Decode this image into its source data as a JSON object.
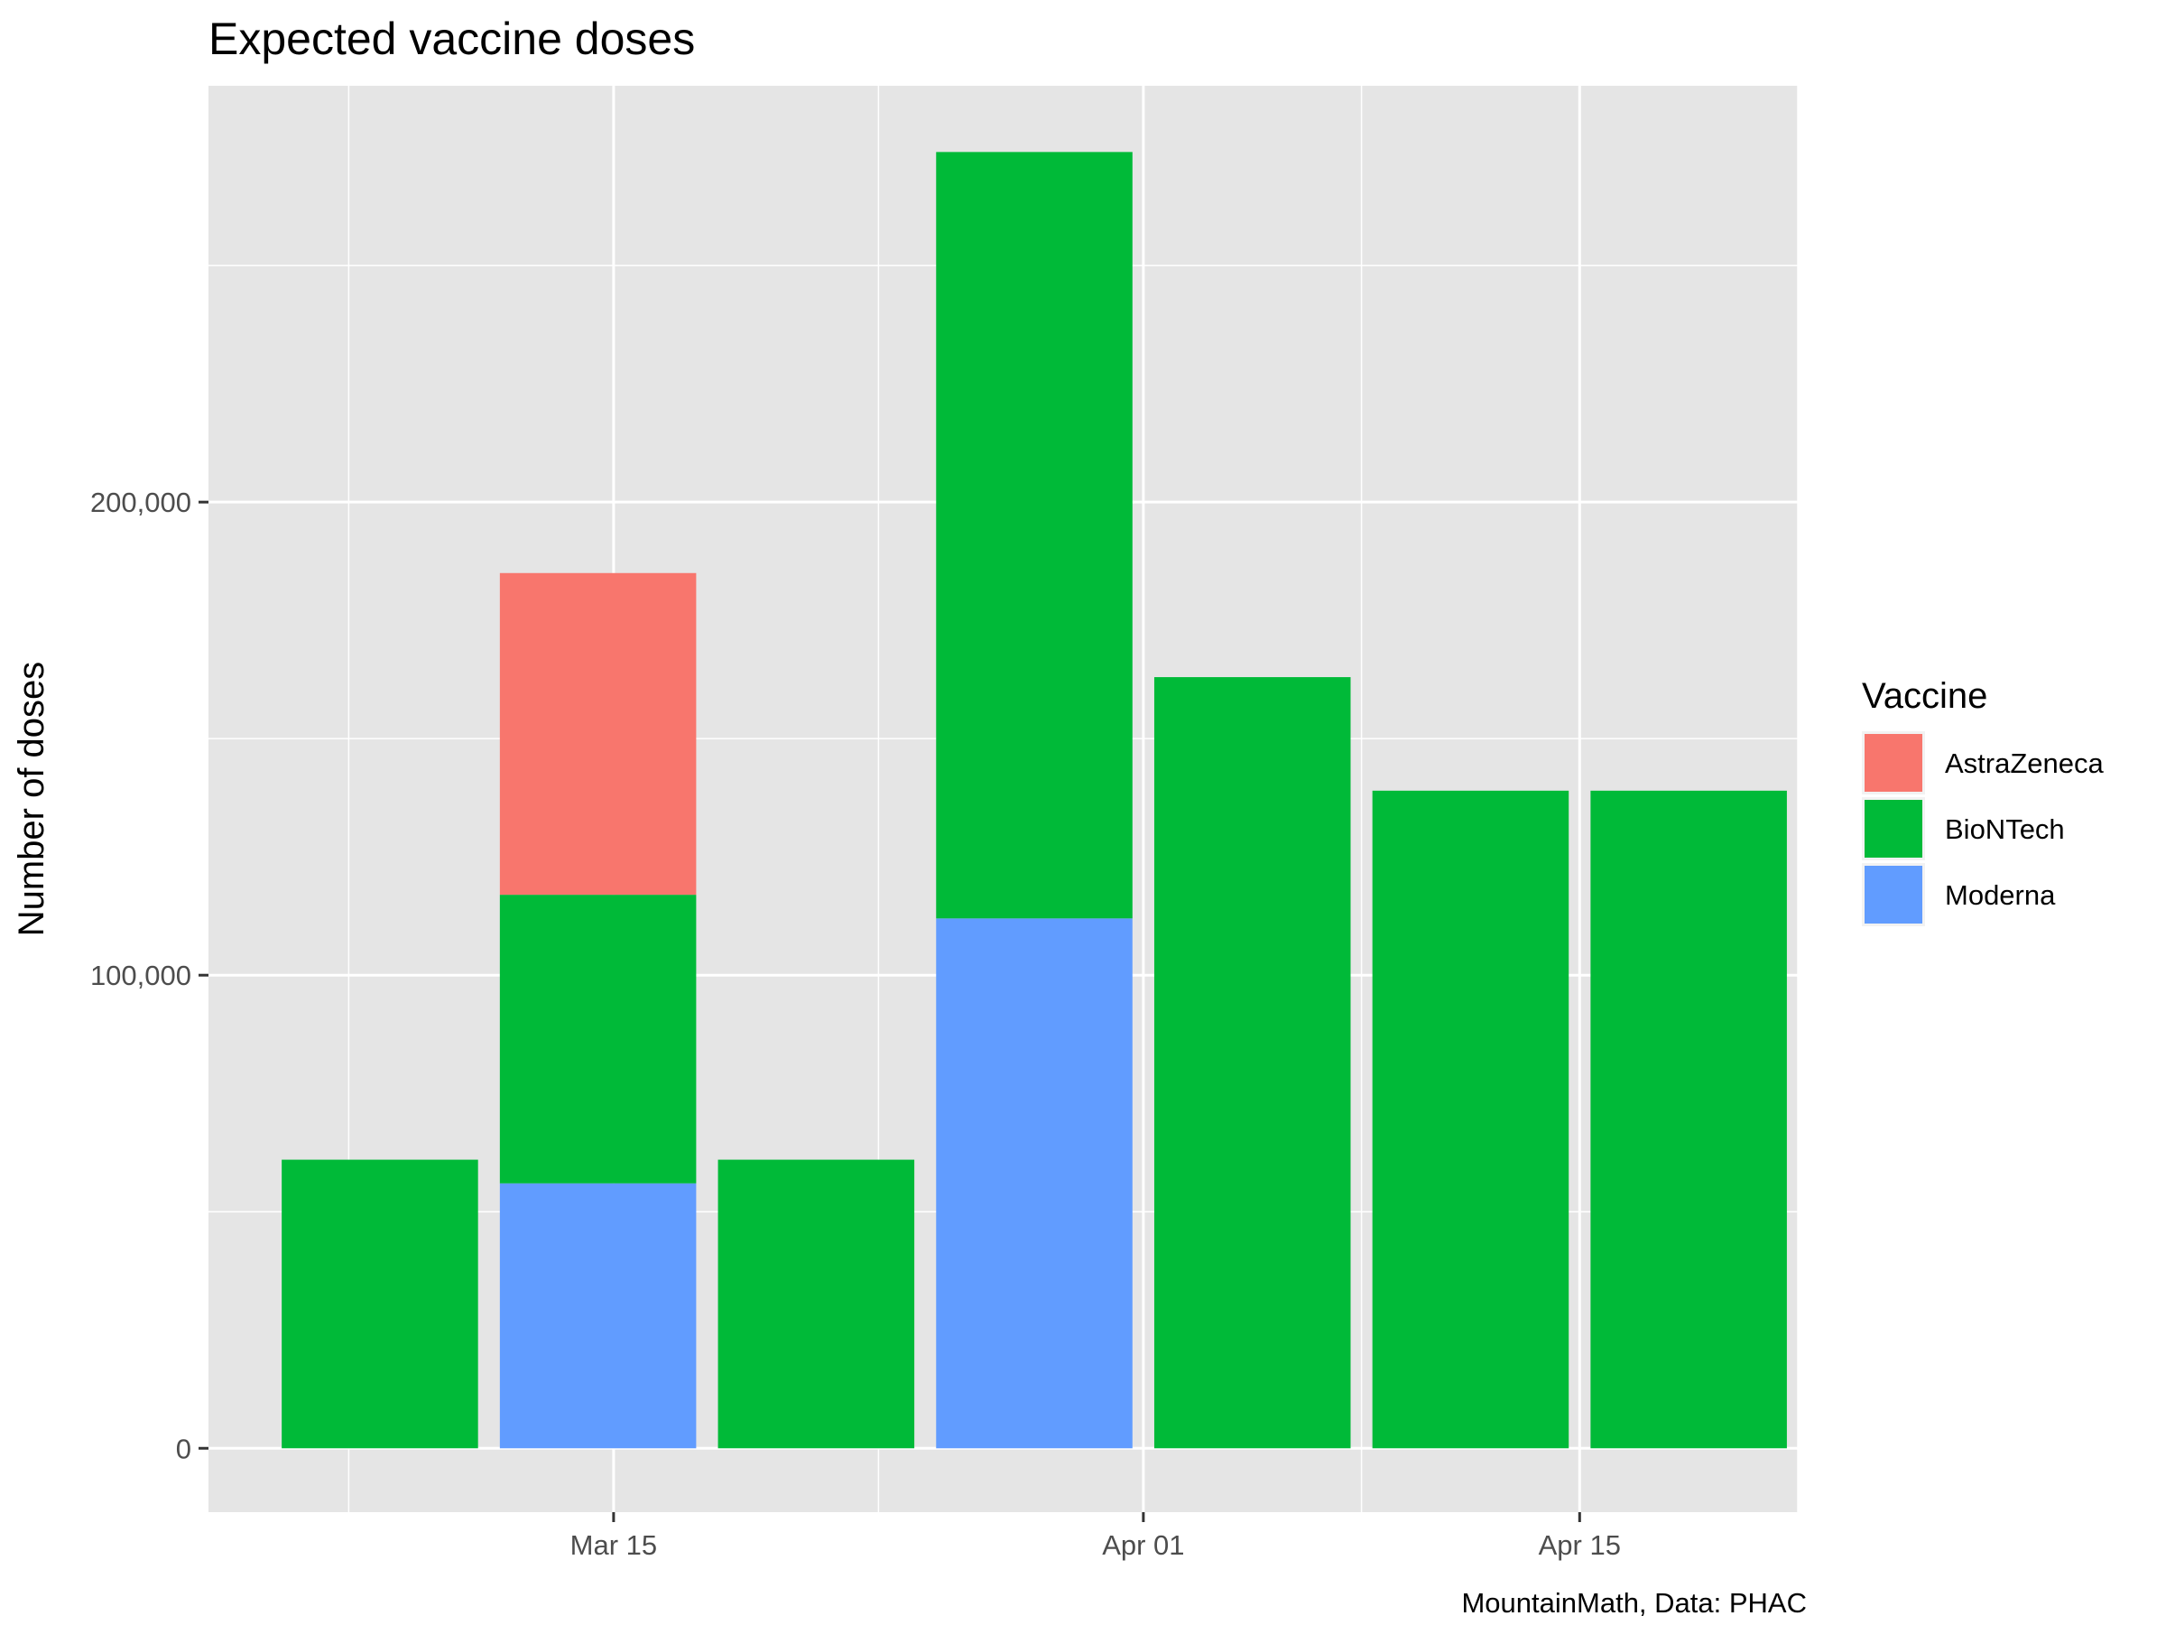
{
  "chart_data": {
    "type": "bar",
    "stacked": true,
    "title": "Expected vaccine doses",
    "subtitle": "",
    "xlabel": "",
    "ylabel": "Number of doses",
    "caption": "MountainMath, Data: PHAC",
    "x_axis": {
      "type": "date",
      "ticks": [
        "2021-03-15",
        "2021-04-01",
        "2021-04-15"
      ],
      "tick_labels": [
        "Mar 15",
        "Apr 01",
        "Apr 15"
      ],
      "range": [
        "2021-03-02",
        "2021-04-22"
      ]
    },
    "y_axis": {
      "ticks": [
        0,
        100000,
        200000
      ],
      "tick_labels": [
        "0",
        "100,000",
        "200,000"
      ],
      "range": [
        -13500,
        288000
      ]
    },
    "grid": true,
    "legend": {
      "title": "Vaccine",
      "position": "right"
    },
    "weeks": [
      "2021-03-08",
      "2021-03-15",
      "2021-03-22",
      "2021-03-29",
      "2021-04-05",
      "2021-04-12",
      "2021-04-19"
    ],
    "series": [
      {
        "name": "AstraZeneca",
        "color": "#F8766D",
        "values": [
          0,
          68000,
          0,
          0,
          0,
          0,
          0
        ]
      },
      {
        "name": "BioNTech",
        "color": "#00BA38",
        "values": [
          61000,
          61000,
          61000,
          162000,
          163000,
          139000,
          139000
        ]
      },
      {
        "name": "Moderna",
        "color": "#619CFF",
        "values": [
          0,
          56000,
          0,
          112000,
          0,
          0,
          0
        ]
      }
    ],
    "stack_order_bottom_to_top": [
      "Moderna",
      "BioNTech",
      "AstraZeneca"
    ]
  }
}
